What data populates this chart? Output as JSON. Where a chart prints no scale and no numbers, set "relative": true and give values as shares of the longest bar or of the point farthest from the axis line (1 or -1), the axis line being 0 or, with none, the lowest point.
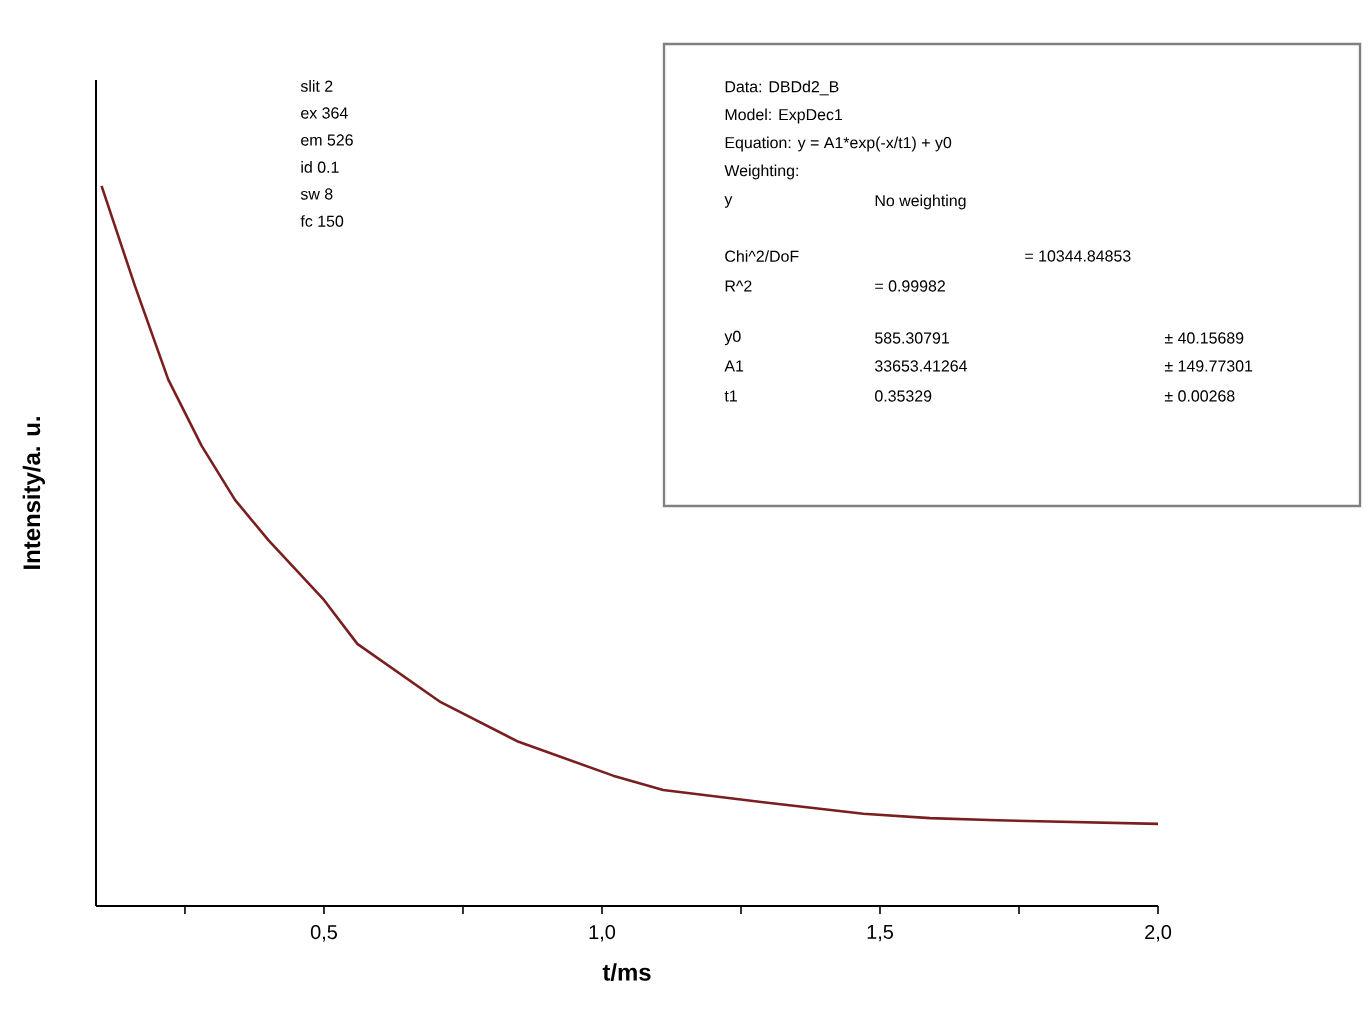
{
  "chart_data": {
    "type": "line",
    "relative": true,
    "tick_labels": "x",
    "xlabel": "t/ms",
    "ylabel": "Intensity/a. u.",
    "x": [
      0.1,
      0.16,
      0.22,
      0.28,
      0.34,
      0.4,
      0.5,
      0.56,
      0.71,
      0.85,
      1.02,
      1.11,
      1.29,
      1.47,
      1.59,
      1.71,
      2.0
    ],
    "xlim": [
      0.09,
      2.0
    ],
    "xticks": [
      {
        "value": 0.25,
        "label": null
      },
      {
        "value": 0.5,
        "label": "0,5"
      },
      {
        "value": 0.75,
        "label": null
      },
      {
        "value": 1.0,
        "label": "1,0"
      },
      {
        "value": 1.25,
        "label": null
      },
      {
        "value": 1.5,
        "label": "1,5"
      },
      {
        "value": 1.75,
        "label": null
      },
      {
        "value": 2.0,
        "label": "2,0"
      }
    ],
    "series": [
      {
        "color": "#7a1f1f",
        "values": [
          1.0,
          0.861,
          0.731,
          0.639,
          0.564,
          0.508,
          0.425,
          0.364,
          0.283,
          0.228,
          0.181,
          0.161,
          0.144,
          0.128,
          0.122,
          0.119,
          0.114
        ]
      }
    ],
    "annotations": [
      "slit 2",
      "ex 364",
      "em 526",
      "id 0.1",
      "sw 8",
      "fc 150",
      "Data: DBDd2_B",
      "Model: ExpDec1",
      "Equation: y = A1*exp(-x/t1) + y0",
      "Weighting:",
      "y",
      "No weighting",
      "Chi^2/DoF",
      "= 10344.84853",
      "R^2",
      "= 0.99982",
      "y0",
      "585.30791",
      "± 40.15689",
      "A1",
      "33653.41264",
      "± 149.77301",
      "t1",
      "0.35329",
      "± 0.00268"
    ]
  }
}
